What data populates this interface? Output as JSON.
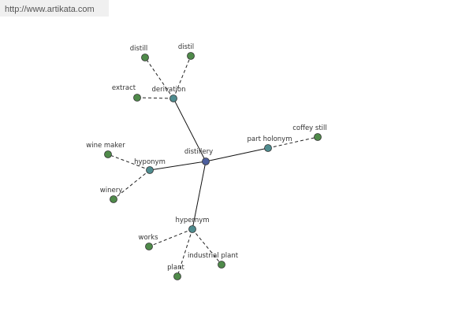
{
  "header": {
    "url": "http://www.artikata.com"
  },
  "nodes": [
    {
      "label": "distillery"
    },
    {
      "label": "derivation"
    },
    {
      "label": "hyponym"
    },
    {
      "label": "hypernym"
    },
    {
      "label": "part holonym"
    },
    {
      "label": "distill"
    },
    {
      "label": "distil"
    },
    {
      "label": "extract"
    },
    {
      "label": "wine maker"
    },
    {
      "label": "winery"
    },
    {
      "label": "works"
    },
    {
      "label": "plant"
    },
    {
      "label": "industrial plant"
    },
    {
      "label": "coffey still"
    }
  ]
}
